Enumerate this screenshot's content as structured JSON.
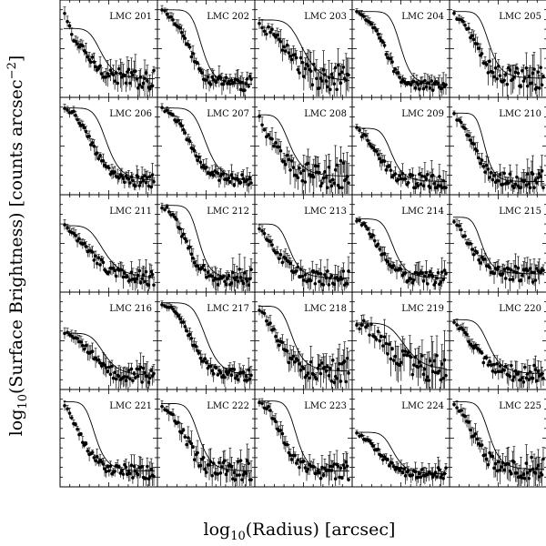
{
  "figure": {
    "xlabel": {
      "prefix": "log",
      "subscript": "10",
      "suffix": "(Radius) [arcsec]"
    },
    "ylabel": {
      "prefix": "log",
      "subscript": "10",
      "middle": "(Surface Brightness) [counts arcsec",
      "superscript": "−2",
      "suffix": "]"
    },
    "style": {
      "frame_color": "#000000",
      "data_color": "#000000",
      "background": "#ffffff"
    }
  },
  "chart_data": {
    "type": "scatter",
    "layout": "small multiples, 5 rows x 5 columns, shared axes",
    "error_bars": true,
    "model_curve": true,
    "grid": false,
    "legend": "none",
    "panels": [
      {
        "label": "LMC 201",
        "profile": [
          0.95,
          0.62,
          0.48,
          0.33,
          0.24,
          0.19,
          0.17,
          0.16,
          0.15,
          0.16
        ],
        "model": {
          "plateau": 0.75,
          "floor": 0.15,
          "break": 0.42,
          "sharpness": 3.5
        },
        "noise": 0.07
      },
      {
        "label": "LMC 202",
        "profile": [
          0.97,
          0.88,
          0.7,
          0.45,
          0.22,
          0.12,
          0.12,
          0.1,
          0.09,
          0.1
        ],
        "model": {
          "plateau": 0.97,
          "floor": 0.09,
          "break": 0.45,
          "sharpness": 4.5
        },
        "noise": 0.05
      },
      {
        "label": "LMC 203",
        "profile": [
          0.8,
          0.72,
          0.6,
          0.45,
          0.32,
          0.22,
          0.18,
          0.15,
          0.14,
          0.13
        ],
        "model": {
          "plateau": 0.85,
          "floor": 0.12,
          "break": 0.5,
          "sharpness": 3.5
        },
        "noise": 0.1
      },
      {
        "label": "LMC 204",
        "profile": [
          0.95,
          0.86,
          0.72,
          0.48,
          0.22,
          0.1,
          0.08,
          0.07,
          0.07,
          0.07
        ],
        "model": {
          "plateau": 0.95,
          "floor": 0.07,
          "break": 0.5,
          "sharpness": 5.0
        },
        "noise": 0.04
      },
      {
        "label": "LMC 205",
        "profile": [
          0.92,
          0.82,
          0.6,
          0.35,
          0.25,
          0.2,
          0.18,
          0.19,
          0.17,
          0.18
        ],
        "model": {
          "plateau": 0.95,
          "floor": 0.16,
          "break": 0.4,
          "sharpness": 4.0
        },
        "noise": 0.08
      },
      {
        "label": "LMC 206",
        "profile": [
          0.95,
          0.9,
          0.72,
          0.48,
          0.28,
          0.16,
          0.12,
          0.1,
          0.1,
          0.1
        ],
        "model": {
          "plateau": 0.96,
          "floor": 0.1,
          "break": 0.48,
          "sharpness": 4.0
        },
        "noise": 0.04
      },
      {
        "label": "LMC 207",
        "profile": [
          0.96,
          0.9,
          0.74,
          0.5,
          0.3,
          0.18,
          0.13,
          0.11,
          0.1,
          0.1
        ],
        "model": {
          "plateau": 0.96,
          "floor": 0.1,
          "break": 0.5,
          "sharpness": 4.0
        },
        "noise": 0.04
      },
      {
        "label": "LMC 208",
        "profile": [
          0.85,
          0.62,
          0.45,
          0.3,
          0.22,
          0.18,
          0.16,
          0.16,
          0.16,
          0.17
        ],
        "model": {
          "plateau": 0.88,
          "floor": 0.15,
          "break": 0.35,
          "sharpness": 3.0
        },
        "noise": 0.1
      },
      {
        "label": "LMC 209",
        "profile": [
          0.72,
          0.6,
          0.42,
          0.26,
          0.15,
          0.1,
          0.09,
          0.09,
          0.09,
          0.09
        ],
        "model": {
          "plateau": 0.72,
          "floor": 0.09,
          "break": 0.4,
          "sharpness": 4.0
        },
        "noise": 0.06
      },
      {
        "label": "LMC 210",
        "profile": [
          0.88,
          0.75,
          0.5,
          0.25,
          0.14,
          0.1,
          0.09,
          0.09,
          0.09,
          0.09
        ],
        "model": {
          "plateau": 0.9,
          "floor": 0.09,
          "break": 0.35,
          "sharpness": 4.5
        },
        "noise": 0.07
      },
      {
        "label": "LMC 211",
        "profile": [
          0.72,
          0.62,
          0.48,
          0.35,
          0.24,
          0.16,
          0.12,
          0.11,
          0.1,
          0.1
        ],
        "model": {
          "plateau": 0.72,
          "floor": 0.1,
          "break": 0.45,
          "sharpness": 3.0
        },
        "noise": 0.05
      },
      {
        "label": "LMC 212",
        "profile": [
          0.96,
          0.88,
          0.65,
          0.38,
          0.2,
          0.12,
          0.1,
          0.1,
          0.1,
          0.1
        ],
        "model": {
          "plateau": 0.96,
          "floor": 0.1,
          "break": 0.42,
          "sharpness": 4.5
        },
        "noise": 0.06
      },
      {
        "label": "LMC 213",
        "profile": [
          0.72,
          0.55,
          0.38,
          0.24,
          0.16,
          0.12,
          0.11,
          0.11,
          0.1,
          0.1
        ],
        "model": {
          "plateau": 0.74,
          "floor": 0.1,
          "break": 0.35,
          "sharpness": 3.5
        },
        "noise": 0.06
      },
      {
        "label": "LMC 214",
        "profile": [
          0.8,
          0.7,
          0.52,
          0.32,
          0.18,
          0.12,
          0.1,
          0.1,
          0.1,
          0.1
        ],
        "model": {
          "plateau": 0.8,
          "floor": 0.1,
          "break": 0.42,
          "sharpness": 4.0
        },
        "noise": 0.05
      },
      {
        "label": "LMC 215",
        "profile": [
          0.8,
          0.62,
          0.42,
          0.28,
          0.2,
          0.16,
          0.15,
          0.15,
          0.15,
          0.15
        ],
        "model": {
          "plateau": 0.82,
          "floor": 0.15,
          "break": 0.32,
          "sharpness": 3.5
        },
        "noise": 0.06
      },
      {
        "label": "LMC 216",
        "profile": [
          0.62,
          0.55,
          0.45,
          0.32,
          0.2,
          0.13,
          0.11,
          0.1,
          0.1,
          0.1
        ],
        "model": {
          "plateau": 0.6,
          "floor": 0.1,
          "break": 0.45,
          "sharpness": 3.5
        },
        "noise": 0.06
      },
      {
        "label": "LMC 217",
        "profile": [
          0.95,
          0.9,
          0.76,
          0.52,
          0.3,
          0.18,
          0.13,
          0.11,
          0.1,
          0.1
        ],
        "model": {
          "plateau": 0.96,
          "floor": 0.1,
          "break": 0.5,
          "sharpness": 4.0
        },
        "noise": 0.04
      },
      {
        "label": "LMC 218",
        "profile": [
          0.9,
          0.74,
          0.5,
          0.3,
          0.2,
          0.16,
          0.15,
          0.15,
          0.15,
          0.15
        ],
        "model": {
          "plateau": 0.92,
          "floor": 0.15,
          "break": 0.38,
          "sharpness": 3.5
        },
        "noise": 0.08
      },
      {
        "label": "LMC 219",
        "profile": [
          0.72,
          0.68,
          0.58,
          0.45,
          0.32,
          0.24,
          0.2,
          0.18,
          0.17,
          0.17
        ],
        "model": {
          "plateau": 0.72,
          "floor": 0.16,
          "break": 0.55,
          "sharpness": 3.5
        },
        "noise": 0.12
      },
      {
        "label": "LMC 220",
        "profile": [
          0.75,
          0.62,
          0.45,
          0.3,
          0.2,
          0.15,
          0.13,
          0.12,
          0.12,
          0.12
        ],
        "model": {
          "plateau": 0.76,
          "floor": 0.12,
          "break": 0.4,
          "sharpness": 3.5
        },
        "noise": 0.06
      },
      {
        "label": "LMC 221",
        "profile": [
          0.92,
          0.7,
          0.45,
          0.28,
          0.18,
          0.14,
          0.13,
          0.12,
          0.12,
          0.12
        ],
        "model": {
          "plateau": 0.94,
          "floor": 0.12,
          "break": 0.35,
          "sharpness": 3.5
        },
        "noise": 0.05
      },
      {
        "label": "LMC 222",
        "profile": [
          0.9,
          0.8,
          0.6,
          0.38,
          0.22,
          0.15,
          0.13,
          0.12,
          0.12,
          0.12
        ],
        "model": {
          "plateau": 0.92,
          "floor": 0.12,
          "break": 0.42,
          "sharpness": 4.0
        },
        "noise": 0.08
      },
      {
        "label": "LMC 223",
        "profile": [
          0.94,
          0.86,
          0.62,
          0.35,
          0.2,
          0.14,
          0.12,
          0.12,
          0.12,
          0.12
        ],
        "model": {
          "plateau": 0.95,
          "floor": 0.12,
          "break": 0.42,
          "sharpness": 4.5
        },
        "noise": 0.06
      },
      {
        "label": "LMC 224",
        "profile": [
          0.58,
          0.5,
          0.38,
          0.24,
          0.14,
          0.1,
          0.09,
          0.09,
          0.09,
          0.09
        ],
        "model": {
          "plateau": 0.58,
          "floor": 0.09,
          "break": 0.42,
          "sharpness": 4.0
        },
        "noise": 0.04
      },
      {
        "label": "LMC 225",
        "profile": [
          0.92,
          0.78,
          0.55,
          0.34,
          0.2,
          0.16,
          0.15,
          0.15,
          0.16,
          0.15
        ],
        "model": {
          "plateau": 0.94,
          "floor": 0.14,
          "break": 0.4,
          "sharpness": 4.0
        },
        "noise": 0.08
      }
    ]
  }
}
